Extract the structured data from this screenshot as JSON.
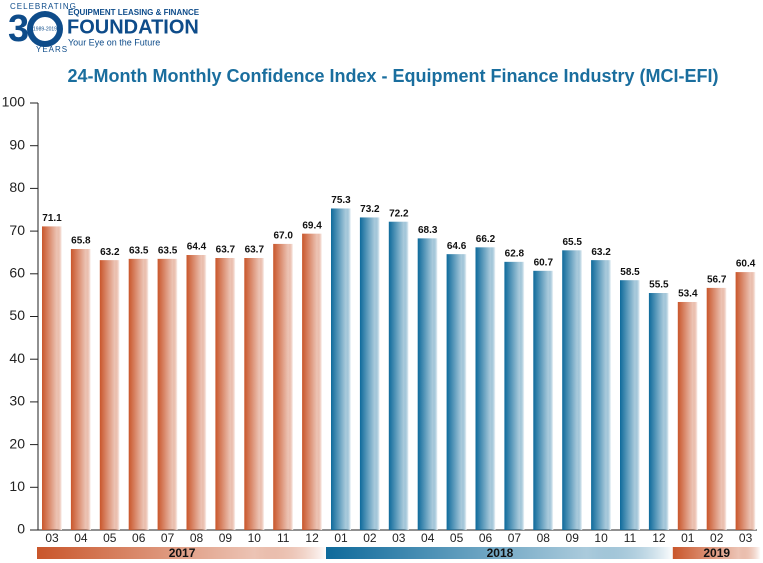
{
  "logo": {
    "celebrating": "CELEBRATING",
    "three": "3",
    "years": "YEARS",
    "span": "1989-2019",
    "org": "EQUIPMENT LEASING & FINANCE",
    "name": "FOUNDATION",
    "tagline": "Your Eye on the Future"
  },
  "chart_data": {
    "type": "bar",
    "title": "24-Month Monthly Confidence Index - Equipment Finance Industry (MCI-EFI)",
    "ylim": [
      0,
      100
    ],
    "yticks": [
      0,
      10,
      20,
      30,
      40,
      50,
      60,
      70,
      80,
      90,
      100
    ],
    "groups": [
      {
        "label": "2017",
        "color": "#c9562b",
        "categories": [
          "03",
          "04",
          "05",
          "06",
          "07",
          "08",
          "09",
          "10",
          "11",
          "12"
        ],
        "values": [
          71.1,
          65.8,
          63.2,
          63.5,
          63.5,
          64.4,
          63.7,
          63.7,
          67,
          69.4
        ],
        "value_labels": [
          "71.1",
          "65.8",
          "63.2",
          "63.5",
          "63.5",
          "64.4",
          "63.7",
          "63.7",
          "67.0",
          "69.4"
        ]
      },
      {
        "label": "2018",
        "color": "#0e6a9b",
        "categories": [
          "01",
          "02",
          "03",
          "04",
          "05",
          "06",
          "07",
          "08",
          "09",
          "10",
          "11",
          "12"
        ],
        "values": [
          75.3,
          73.2,
          72.2,
          68.3,
          64.6,
          66.2,
          62.8,
          60.7,
          65.5,
          63.2,
          58.5,
          55.5
        ],
        "value_labels": [
          "75.3",
          "73.2",
          "72.2",
          "68.3",
          "64.6",
          "66.2",
          "62.8",
          "60.7",
          "65.5",
          "63.2",
          "58.5",
          "55.5"
        ]
      },
      {
        "label": "2019",
        "color": "#c9562b",
        "categories": [
          "01",
          "02",
          "03"
        ],
        "values": [
          53.4,
          56.7,
          60.4
        ],
        "value_labels": [
          "53.4",
          "56.7",
          "60.4"
        ]
      }
    ]
  }
}
